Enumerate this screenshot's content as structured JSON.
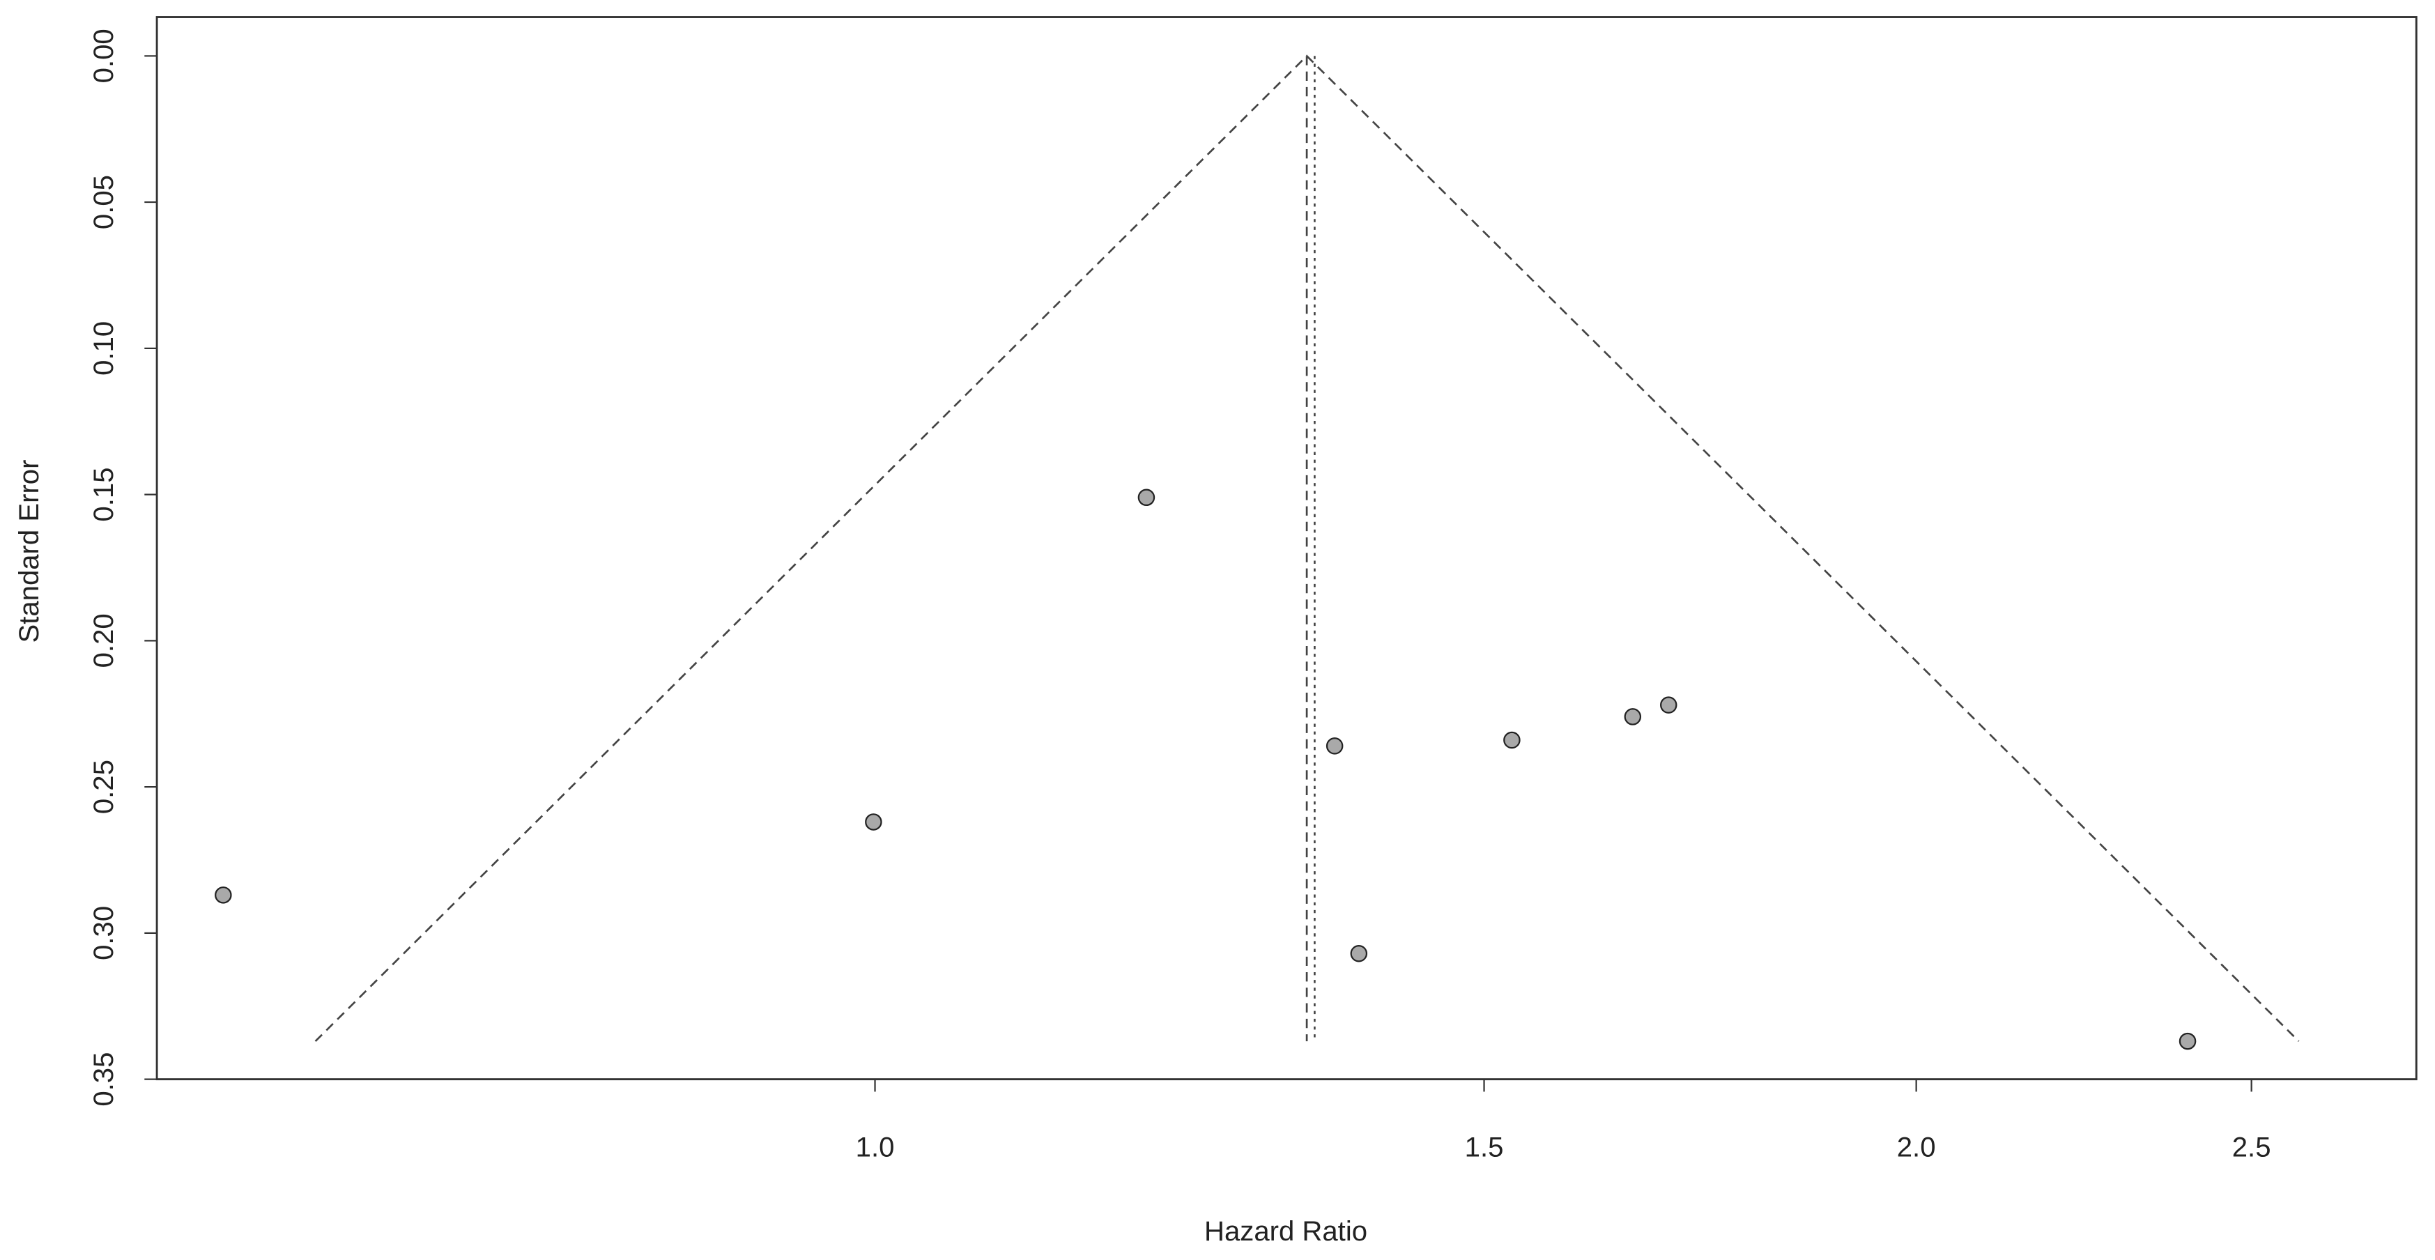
{
  "chart_data": {
    "type": "funnel",
    "x_label": "Hazard Ratio",
    "y_label": "Standard Error",
    "x_log": true,
    "y_inverted": true,
    "xlim": [
      0.62,
      2.79
    ],
    "ylim": [
      -0.0133,
      0.35
    ],
    "xticks": [
      {
        "value": 1,
        "label": "1.0"
      },
      1.5,
      {
        "value": 2,
        "label": "2.0"
      },
      2.5
    ],
    "yticks": [
      {
        "value": 0,
        "label": "0.00"
      },
      0.05,
      {
        "value": 0.1,
        "label": "0.10"
      },
      0.15,
      {
        "value": 0.2,
        "label": "0.20"
      },
      0.25,
      {
        "value": 0.3,
        "label": "0.30"
      },
      0.35
    ],
    "point_color": "#a9a9a9",
    "x": [
      0.648,
      0.999,
      1.198,
      1.358,
      1.38,
      1.528,
      1.656,
      1.696,
      2.396
    ],
    "values": [
      0.287,
      0.262,
      0.151,
      0.236,
      0.307,
      0.234,
      0.226,
      0.222,
      0.337
    ],
    "funnel": {
      "x": [
        0.689,
        1.333,
        2.58
      ],
      "y": [
        0.337,
        0,
        0.337
      ]
    },
    "reference_lines": [
      {
        "x": 1.333,
        "y": [
          0,
          0.337
        ],
        "style": "dashed"
      },
      {
        "x": 1.34,
        "y": [
          0,
          0.337
        ],
        "style": "dotted"
      }
    ]
  }
}
